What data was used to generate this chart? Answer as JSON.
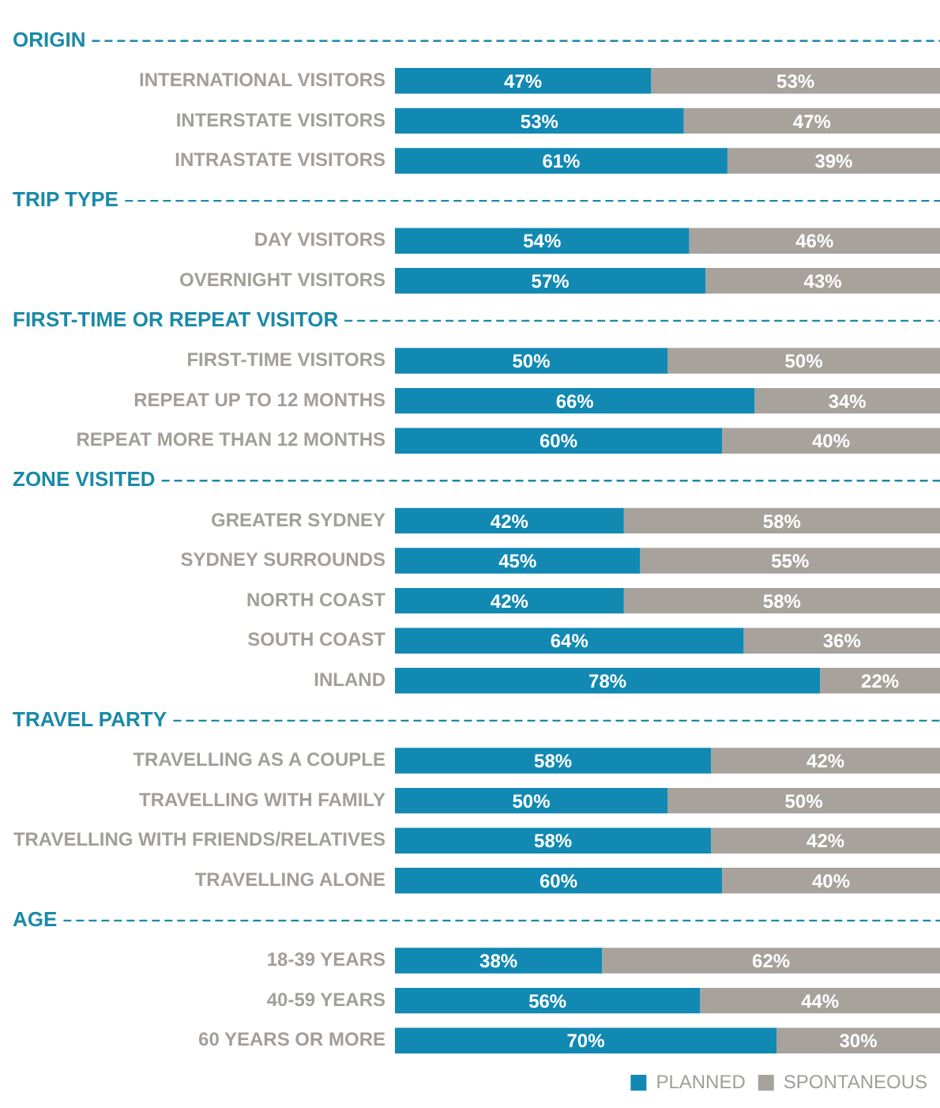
{
  "chart_data": {
    "type": "bar",
    "orientation": "horizontal",
    "stacked": true,
    "xlim": [
      0,
      100
    ],
    "tick_labels": "y",
    "legend": "bottom right",
    "annotations": [
      "ORIGIN",
      "TRIP TYPE",
      "FIRST-TIME OR REPEAT VISITOR",
      "ZONE VISITED",
      "TRAVEL PARTY",
      "AGE"
    ],
    "categories": [
      null,
      "INTERNATIONAL VISITORS",
      "INTERSTATE VISITORS",
      "INTRASTATE VISITORS",
      null,
      "DAY VISITORS",
      "OVERNIGHT VISITORS",
      null,
      "FIRST-TIME VISITORS",
      "REPEAT UP TO 12 MONTHS",
      "REPEAT MORE THAN 12 MONTHS",
      null,
      "GREATER SYDNEY",
      "SYDNEY SURROUNDS",
      "NORTH COAST",
      "SOUTH COAST",
      "INLAND",
      null,
      "TRAVELLING AS A COUPLE",
      "TRAVELLING WITH FAMILY",
      "TRAVELLING WITH FRIENDS/RELATIVES",
      "TRAVELLING ALONE",
      null,
      "18-39 YEARS",
      "40-59 YEARS",
      "60 YEARS OR MORE"
    ],
    "series": [
      {
        "name": "PLANNED",
        "color": "#1189b3",
        "values": [
          null,
          47,
          53,
          61,
          null,
          54,
          57,
          null,
          50,
          66,
          60,
          null,
          42,
          45,
          42,
          64,
          78,
          null,
          58,
          50,
          58,
          60,
          null,
          38,
          56,
          70
        ],
        "value_labels": [
          null,
          "47%",
          "53%",
          "61%",
          null,
          "54%",
          "57%",
          null,
          "50%",
          "66%",
          "60%",
          null,
          "42%",
          "45%",
          "42%",
          "64%",
          "78%",
          null,
          "58%",
          "50%",
          "58%",
          "60%",
          null,
          "38%",
          "56%",
          "70%"
        ]
      },
      {
        "name": "SPONTANEOUS",
        "color": "#a8a29d",
        "values": [
          null,
          53,
          47,
          39,
          null,
          46,
          43,
          null,
          50,
          34,
          40,
          null,
          58,
          55,
          58,
          36,
          22,
          null,
          42,
          50,
          42,
          40,
          null,
          62,
          44,
          30
        ],
        "value_labels": [
          null,
          "53%",
          "47%",
          "39%",
          null,
          "46%",
          "43%",
          null,
          "50%",
          "34%",
          "40%",
          null,
          "58%",
          "55%",
          "58%",
          "36%",
          "22%",
          null,
          "42%",
          "50%",
          "42%",
          "40%",
          null,
          "62%",
          "44%",
          "30%"
        ]
      }
    ]
  }
}
